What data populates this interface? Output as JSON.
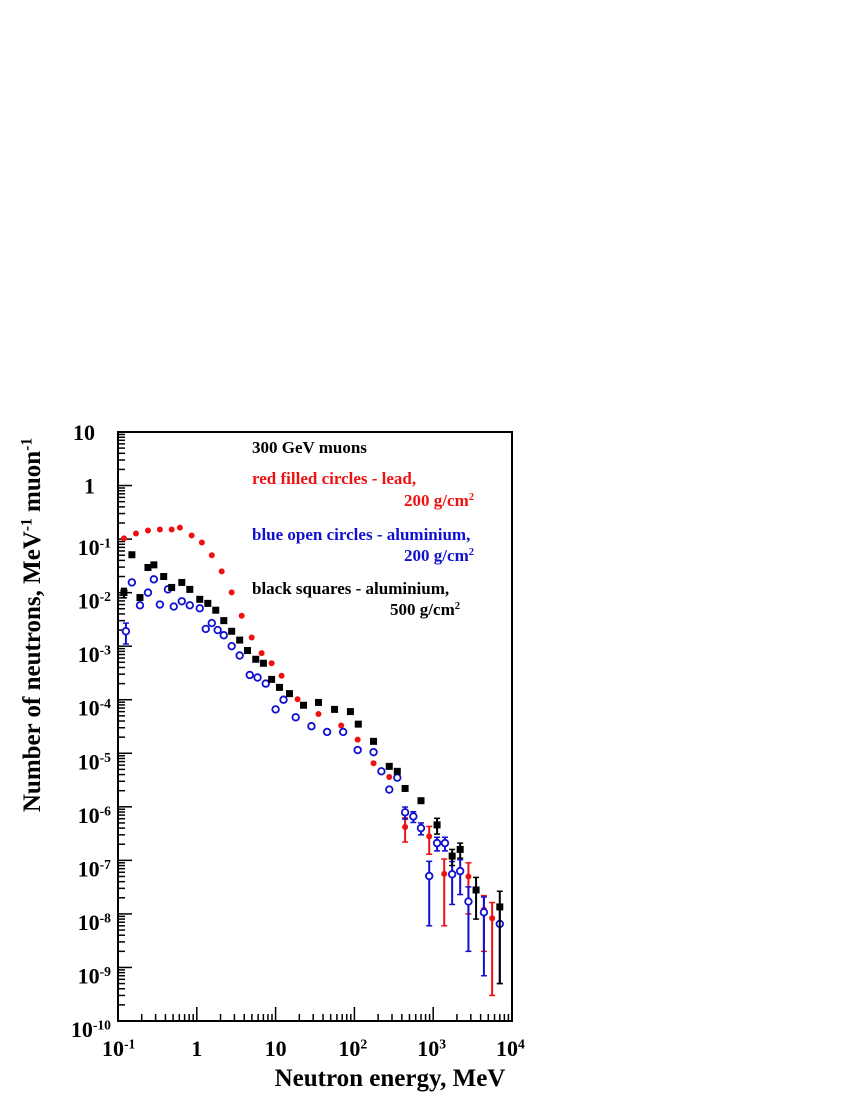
{
  "chart_data": {
    "type": "scatter",
    "xscale": "log",
    "yscale": "log",
    "xlabel": [
      "Neutron energy, MeV"
    ],
    "ylabel": [
      "Number of neutrons, MeV",
      "-1",
      " muon",
      "-1"
    ],
    "xlim": [
      0.1,
      10000
    ],
    "ylim": [
      1e-10,
      10
    ],
    "xticks": [
      {
        "value": 0.1,
        "label": [
          "10",
          "-1"
        ]
      },
      1,
      10,
      {
        "value": 100,
        "label": [
          "10",
          "2"
        ]
      },
      {
        "value": 1000,
        "label": [
          "10",
          "3"
        ]
      },
      {
        "value": 10000,
        "label": [
          "10",
          "4"
        ]
      }
    ],
    "yticks": [
      {
        "value": 1e-10,
        "label": [
          "10",
          "-10"
        ]
      },
      {
        "value": 1e-09,
        "label": [
          "10",
          "-9"
        ]
      },
      {
        "value": 1e-08,
        "label": [
          "10",
          "-8"
        ]
      },
      {
        "value": 1e-07,
        "label": [
          "10",
          "-7"
        ]
      },
      {
        "value": 1e-06,
        "label": [
          "10",
          "-6"
        ]
      },
      {
        "value": 1e-05,
        "label": [
          "10",
          "-5"
        ]
      },
      {
        "value": 0.0001,
        "label": [
          "10",
          "-4"
        ]
      },
      {
        "value": 0.001,
        "label": [
          "10",
          "-3"
        ]
      },
      {
        "value": 0.01,
        "label": [
          "10",
          "-2"
        ]
      },
      {
        "value": 0.1,
        "label": [
          "10",
          "-1"
        ]
      },
      1,
      10
    ],
    "annotations": [
      {
        "text": [
          "300 GeV muons"
        ],
        "color": "#000000"
      },
      {
        "text": [
          "red filled circles - lead,"
        ],
        "color": "#ee1111"
      },
      {
        "text": [
          "200 g/cm",
          "2"
        ],
        "color": "#ee1111"
      },
      {
        "text": [
          "blue open circles - aluminium,"
        ],
        "color": "#1010d0"
      },
      {
        "text": [
          "200 g/cm",
          "2"
        ],
        "color": "#1010d0"
      },
      {
        "text": [
          "black squares - aluminium,"
        ],
        "color": "#000000"
      },
      {
        "text": [
          "500 g/cm",
          "2"
        ],
        "color": "#000000"
      }
    ],
    "series": [
      {
        "marker": "filled-circle",
        "color": "#ee1111",
        "x": [
          0.119,
          0.169,
          0.24,
          0.34,
          0.48,
          0.61,
          0.86,
          1.16,
          1.55,
          2.07,
          2.77,
          3.71,
          4.97,
          6.65,
          8.9,
          11.9,
          19,
          35,
          68,
          110,
          175,
          277,
          440,
          890,
          1380,
          2800,
          4400,
          5600
        ],
        "values": [
          0.103,
          0.127,
          0.145,
          0.151,
          0.151,
          0.164,
          0.117,
          0.0865,
          0.05,
          0.0249,
          0.0101,
          0.0037,
          0.00145,
          0.00074,
          0.00048,
          0.00028,
          0.000102,
          5.4e-05,
          3.3e-05,
          1.8e-05,
          6.5e-06,
          3.6e-06,
          4.2e-07,
          2.8e-07,
          5.6e-08,
          5e-08,
          1.2e-08,
          8.3e-09
        ],
        "errors": [
          null,
          null,
          null,
          null,
          null,
          null,
          null,
          null,
          null,
          null,
          null,
          null,
          null,
          null,
          null,
          null,
          null,
          null,
          null,
          null,
          null,
          null,
          2e-07,
          1.5e-07,
          5e-08,
          4e-08,
          1e-08,
          8e-09
        ]
      },
      {
        "marker": "open-circle",
        "color": "#1010d0",
        "x": [
          0.126,
          0.15,
          0.19,
          0.24,
          0.285,
          0.34,
          0.43,
          0.51,
          0.645,
          0.815,
          1.09,
          1.3,
          1.55,
          1.84,
          2.2,
          2.77,
          3.5,
          4.7,
          5.9,
          7.5,
          10,
          12.6,
          18,
          28.5,
          45,
          72,
          110,
          175,
          220,
          277,
          350,
          440,
          560,
          700,
          890,
          1120,
          1410,
          1740,
          2200,
          2800,
          4400,
          7000
        ],
        "values": [
          0.0019,
          0.0155,
          0.0058,
          0.01,
          0.0177,
          0.006,
          0.0115,
          0.0055,
          0.0069,
          0.0058,
          0.0051,
          0.0021,
          0.0027,
          0.002,
          0.0016,
          0.001,
          0.00067,
          0.00029,
          0.00026,
          0.0002,
          6.6e-05,
          0.0001,
          4.7e-05,
          3.2e-05,
          2.5e-05,
          2.5e-05,
          1.15e-05,
          1.05e-05,
          4.6e-06,
          2.1e-06,
          3.5e-06,
          7.9e-07,
          6.6e-07,
          4e-07,
          5.1e-08,
          2.1e-07,
          2.1e-07,
          5.5e-08,
          6.3e-08,
          1.7e-08,
          1.07e-08,
          6.5e-09
        ],
        "errors": [
          0.0008,
          null,
          null,
          null,
          null,
          null,
          null,
          null,
          null,
          null,
          null,
          null,
          null,
          null,
          null,
          null,
          null,
          null,
          null,
          null,
          null,
          null,
          null,
          null,
          null,
          null,
          null,
          null,
          null,
          null,
          null,
          2e-07,
          1.5e-07,
          1e-07,
          4.5e-08,
          6e-08,
          6e-08,
          4e-08,
          4e-08,
          1.5e-08,
          1e-08,
          6e-09
        ]
      },
      {
        "marker": "square",
        "color": "#000000",
        "x": [
          0.119,
          0.15,
          0.19,
          0.24,
          0.285,
          0.38,
          0.48,
          0.645,
          0.815,
          1.09,
          1.38,
          1.74,
          2.2,
          2.77,
          3.5,
          4.4,
          5.6,
          7,
          8.9,
          11.2,
          15,
          22.6,
          35,
          56,
          89,
          112,
          175,
          277,
          350,
          440,
          700,
          1120,
          1740,
          2200,
          3500,
          7000
        ],
        "values": [
          0.01,
          0.051,
          0.0081,
          0.0295,
          0.033,
          0.02,
          0.0125,
          0.0155,
          0.0115,
          0.0075,
          0.0063,
          0.0047,
          0.003,
          0.0019,
          0.0013,
          0.00083,
          0.00057,
          0.00048,
          0.00024,
          0.00017,
          0.00013,
          7.9e-05,
          8.9e-05,
          6.6e-05,
          6e-05,
          3.5e-05,
          1.67e-05,
          5.7e-06,
          4.6e-06,
          2.2e-06,
          1.3e-06,
          4.6e-07,
          1.2e-07,
          1.6e-07,
          2.8e-08,
          1.35e-08
        ],
        "errors": [
          0.002,
          null,
          null,
          null,
          null,
          null,
          null,
          null,
          null,
          null,
          null,
          null,
          null,
          null,
          null,
          null,
          null,
          null,
          null,
          null,
          null,
          null,
          null,
          null,
          null,
          null,
          null,
          null,
          null,
          null,
          null,
          1.5e-07,
          4e-08,
          5e-08,
          2e-08,
          1.3e-08
        ]
      }
    ]
  }
}
